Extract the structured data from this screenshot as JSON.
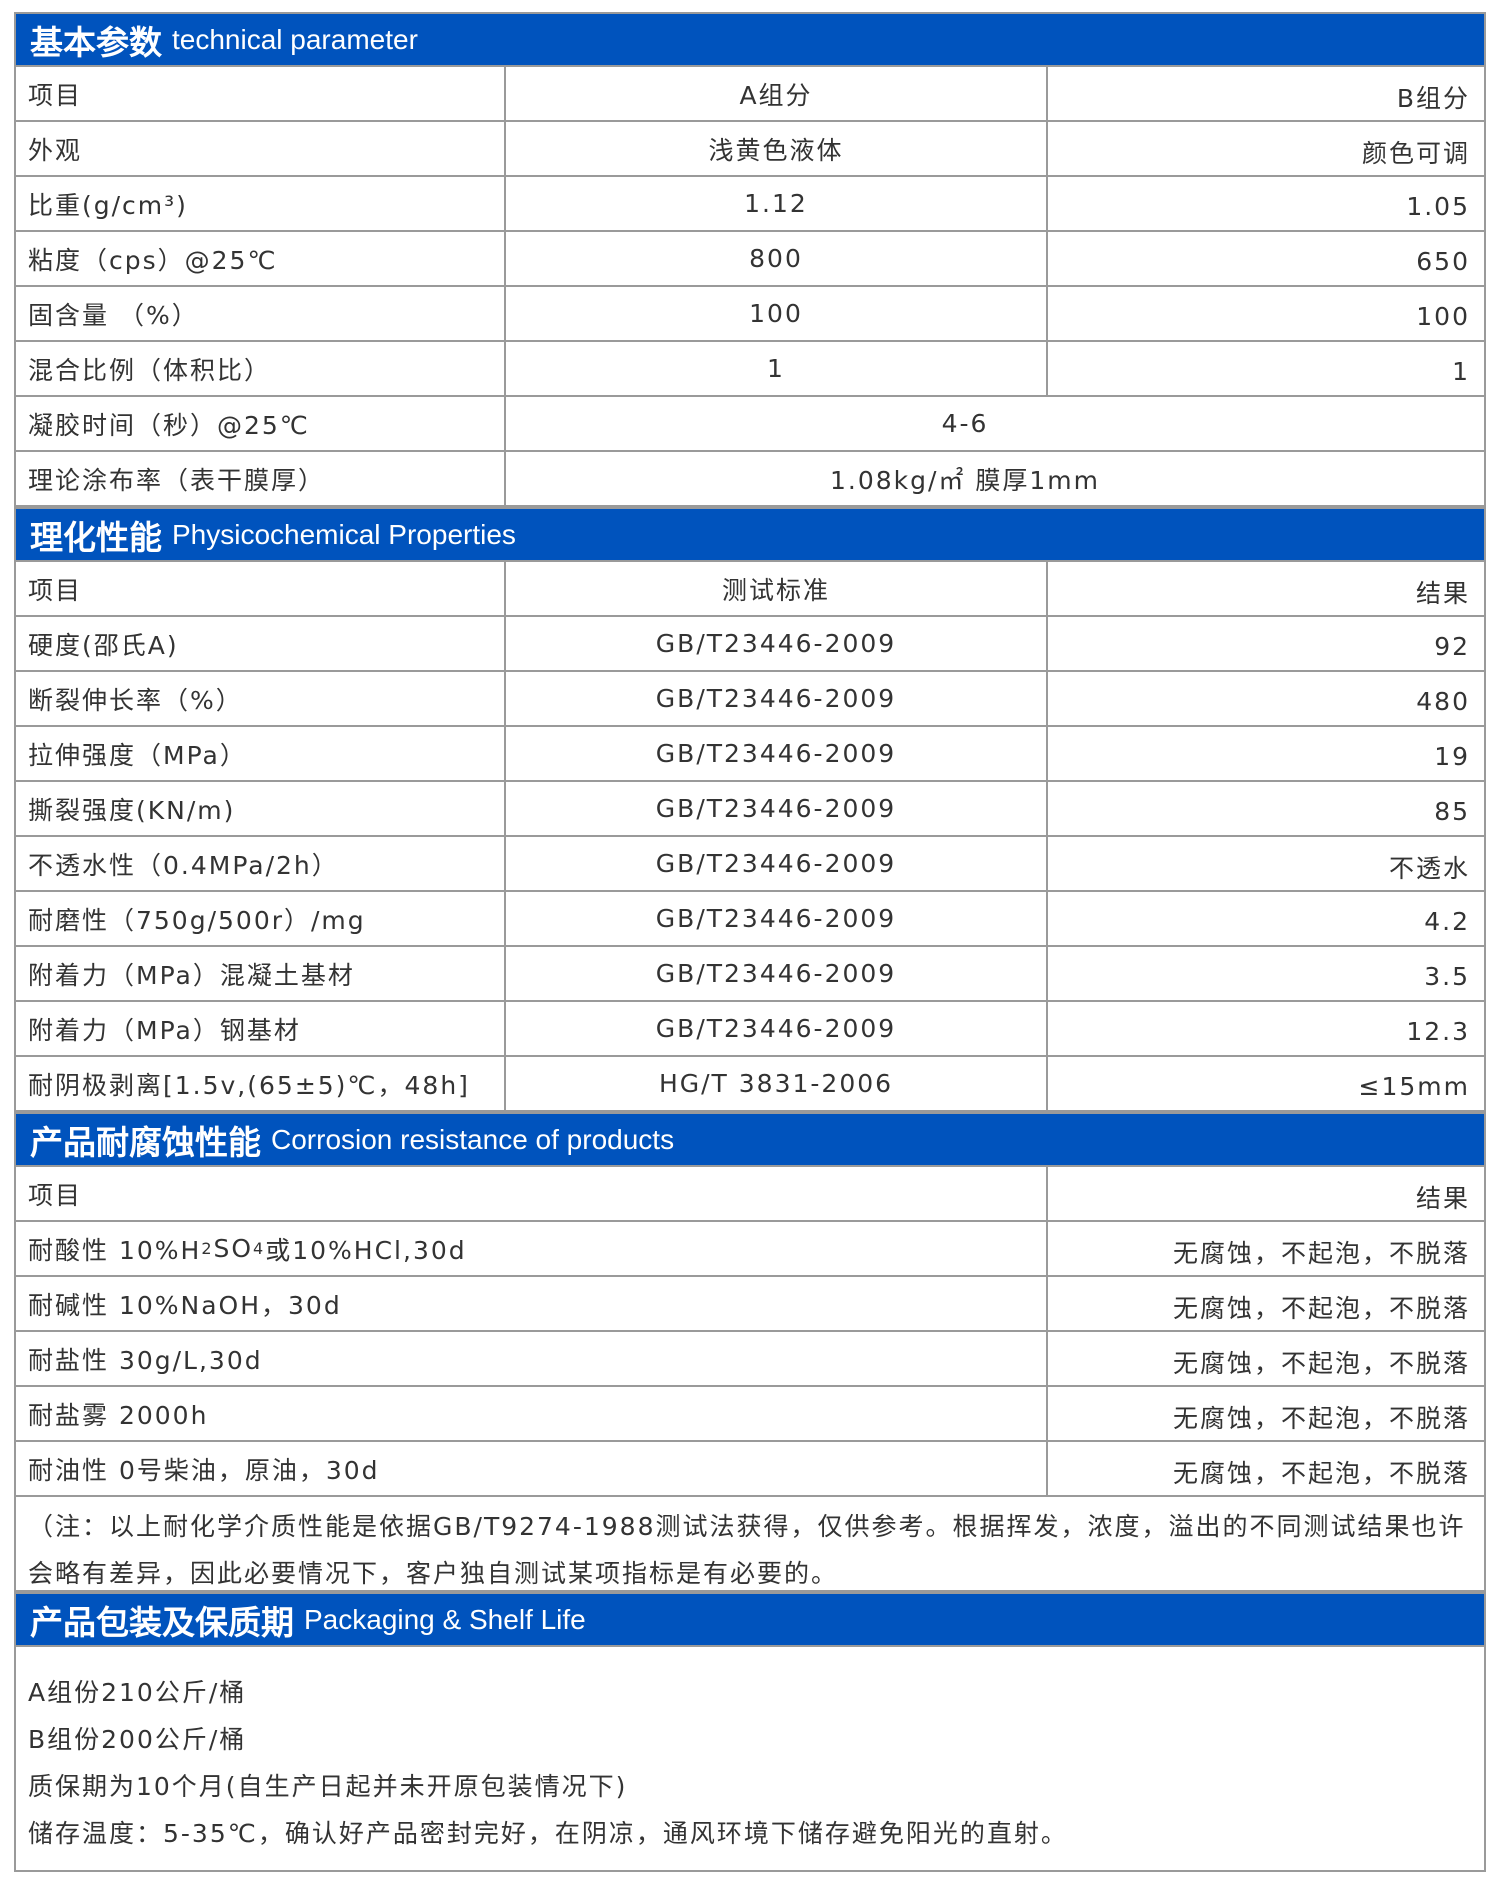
{
  "colors": {
    "header_bg": "#0053bd",
    "header_text": "#ffffff",
    "border": "#9a9a9a",
    "text": "#333333"
  },
  "technical": {
    "title_cn": "基本参数",
    "title_en": "technical parameter",
    "header": [
      "项目",
      "A组分",
      "B组分"
    ],
    "rows": [
      [
        "外观",
        "浅黄色液体",
        "颜色可调"
      ],
      [
        "比重(g/cm³)",
        "1.12",
        "1.05"
      ],
      [
        "粘度（cps）@25℃",
        "800",
        "650"
      ],
      [
        "固含量 （%）",
        "100",
        "100"
      ],
      [
        "混合比例（体积比）",
        "1",
        "1"
      ]
    ],
    "merged_rows": [
      [
        "凝胶时间（秒）@25℃",
        "4-6"
      ],
      [
        "理论涂布率（表干膜厚）",
        "1.08kg/㎡ 膜厚1mm"
      ]
    ]
  },
  "physico": {
    "title_cn": "理化性能",
    "title_en": "Physicochemical Properties",
    "header": [
      "项目",
      "测试标准",
      "结果"
    ],
    "rows": [
      [
        "硬度(邵氏A)",
        "GB/T23446-2009",
        "92"
      ],
      [
        "断裂伸长率（%）",
        "GB/T23446-2009",
        "480"
      ],
      [
        "拉伸强度（MPa）",
        "GB/T23446-2009",
        "19"
      ],
      [
        "撕裂强度(KN/m)",
        "GB/T23446-2009",
        "85"
      ],
      [
        "不透水性（0.4MPa/2h）",
        "GB/T23446-2009",
        "不透水"
      ],
      [
        "耐磨性（750g/500r）/mg",
        "GB/T23446-2009",
        "4.2"
      ],
      [
        "附着力（MPa）混凝土基材",
        "GB/T23446-2009",
        "3.5"
      ],
      [
        "附着力（MPa）钢基材",
        "GB/T23446-2009",
        "12.3"
      ],
      [
        "耐阴极剥离[1.5v,(65±5)℃，48h]",
        "HG/T 3831-2006",
        "≤15mm"
      ]
    ]
  },
  "corrosion": {
    "title_cn": "产品耐腐蚀性能",
    "title_en": "Corrosion resistance of products",
    "header": [
      "项目",
      "结果"
    ],
    "acid": {
      "a": "耐酸性 10%H",
      "b": "2",
      "c": "SO",
      "d": "4",
      "e": "或10%HCl,30d"
    },
    "rows": [
      [
        "耐碱性 10%NaOH，30d",
        "无腐蚀，不起泡，不脱落"
      ],
      [
        "耐盐性 30g/L,30d",
        "无腐蚀，不起泡，不脱落"
      ],
      [
        "耐盐雾 2000h",
        "无腐蚀，不起泡，不脱落"
      ],
      [
        "耐油性 0号柴油，原油，30d",
        "无腐蚀，不起泡，不脱落"
      ]
    ],
    "acid_result": "无腐蚀，不起泡，不脱落",
    "note": "（注：以上耐化学介质性能是依据GB/T9274-1988测试法获得，仅供参考。根据挥发，浓度，溢出的不同测试结果也许会略有差异，因此必要情况下，客户独自测试某项指标是有必要的。"
  },
  "packaging": {
    "title_cn": "产品包装及保质期",
    "title_en": "Packaging & Shelf Life",
    "lines": [
      "A组份210公斤/桶",
      "B组份200公斤/桶",
      "质保期为10个月(自生产日起并未开原包装情况下)",
      "储存温度：5-35℃，确认好产品密封完好，在阴凉，通风环境下储存避免阳光的直射。"
    ]
  }
}
